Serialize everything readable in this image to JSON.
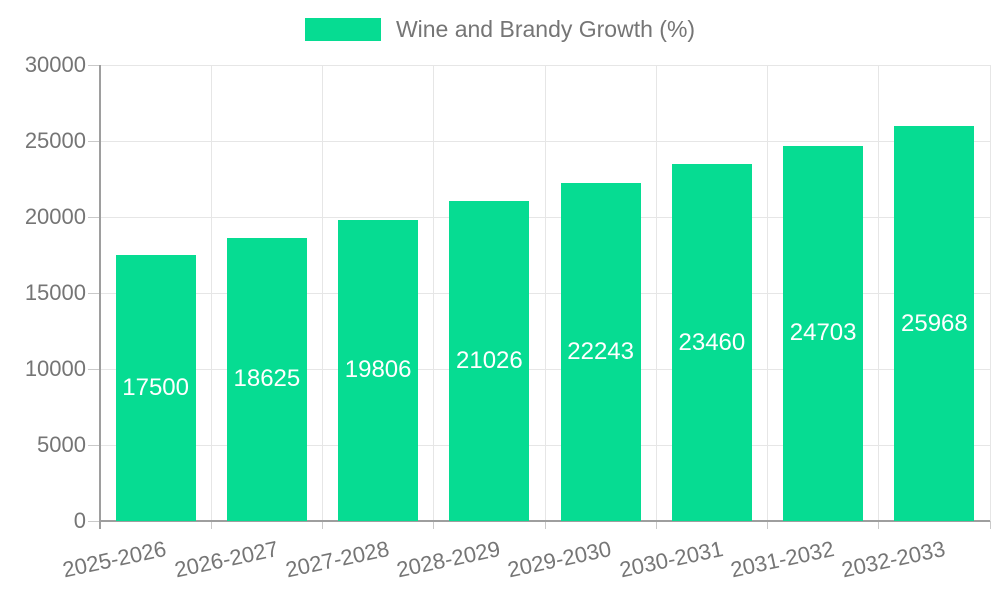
{
  "legend": {
    "label": "Wine and Brandy Growth (%)",
    "swatch_color": "#06dc92"
  },
  "colors": {
    "bar": "#06dc92",
    "grid": "#e6e6e6",
    "tick": "#c9c9c9",
    "axis": "#9e9e9e",
    "text": "#757575",
    "value_text": "#ffffff",
    "background": "#ffffff"
  },
  "chart_data": {
    "type": "bar",
    "title": "Wine and Brandy Growth (%)",
    "categories": [
      "2025-2026",
      "2026-2027",
      "2027-2028",
      "2028-2029",
      "2029-2030",
      "2030-2031",
      "2031-2032",
      "2032-2033"
    ],
    "values": [
      17500,
      18625,
      19806,
      21026,
      22243,
      23460,
      24703,
      25968
    ],
    "xlabel": "",
    "ylabel": "",
    "ylim": [
      0,
      30000
    ],
    "ytick_step": 5000,
    "yticks": [
      0,
      5000,
      10000,
      15000,
      20000,
      25000,
      30000
    ],
    "grid": true,
    "legend_position": "top",
    "value_label_position": "inside-center",
    "x_label_rotation_deg": -12
  }
}
